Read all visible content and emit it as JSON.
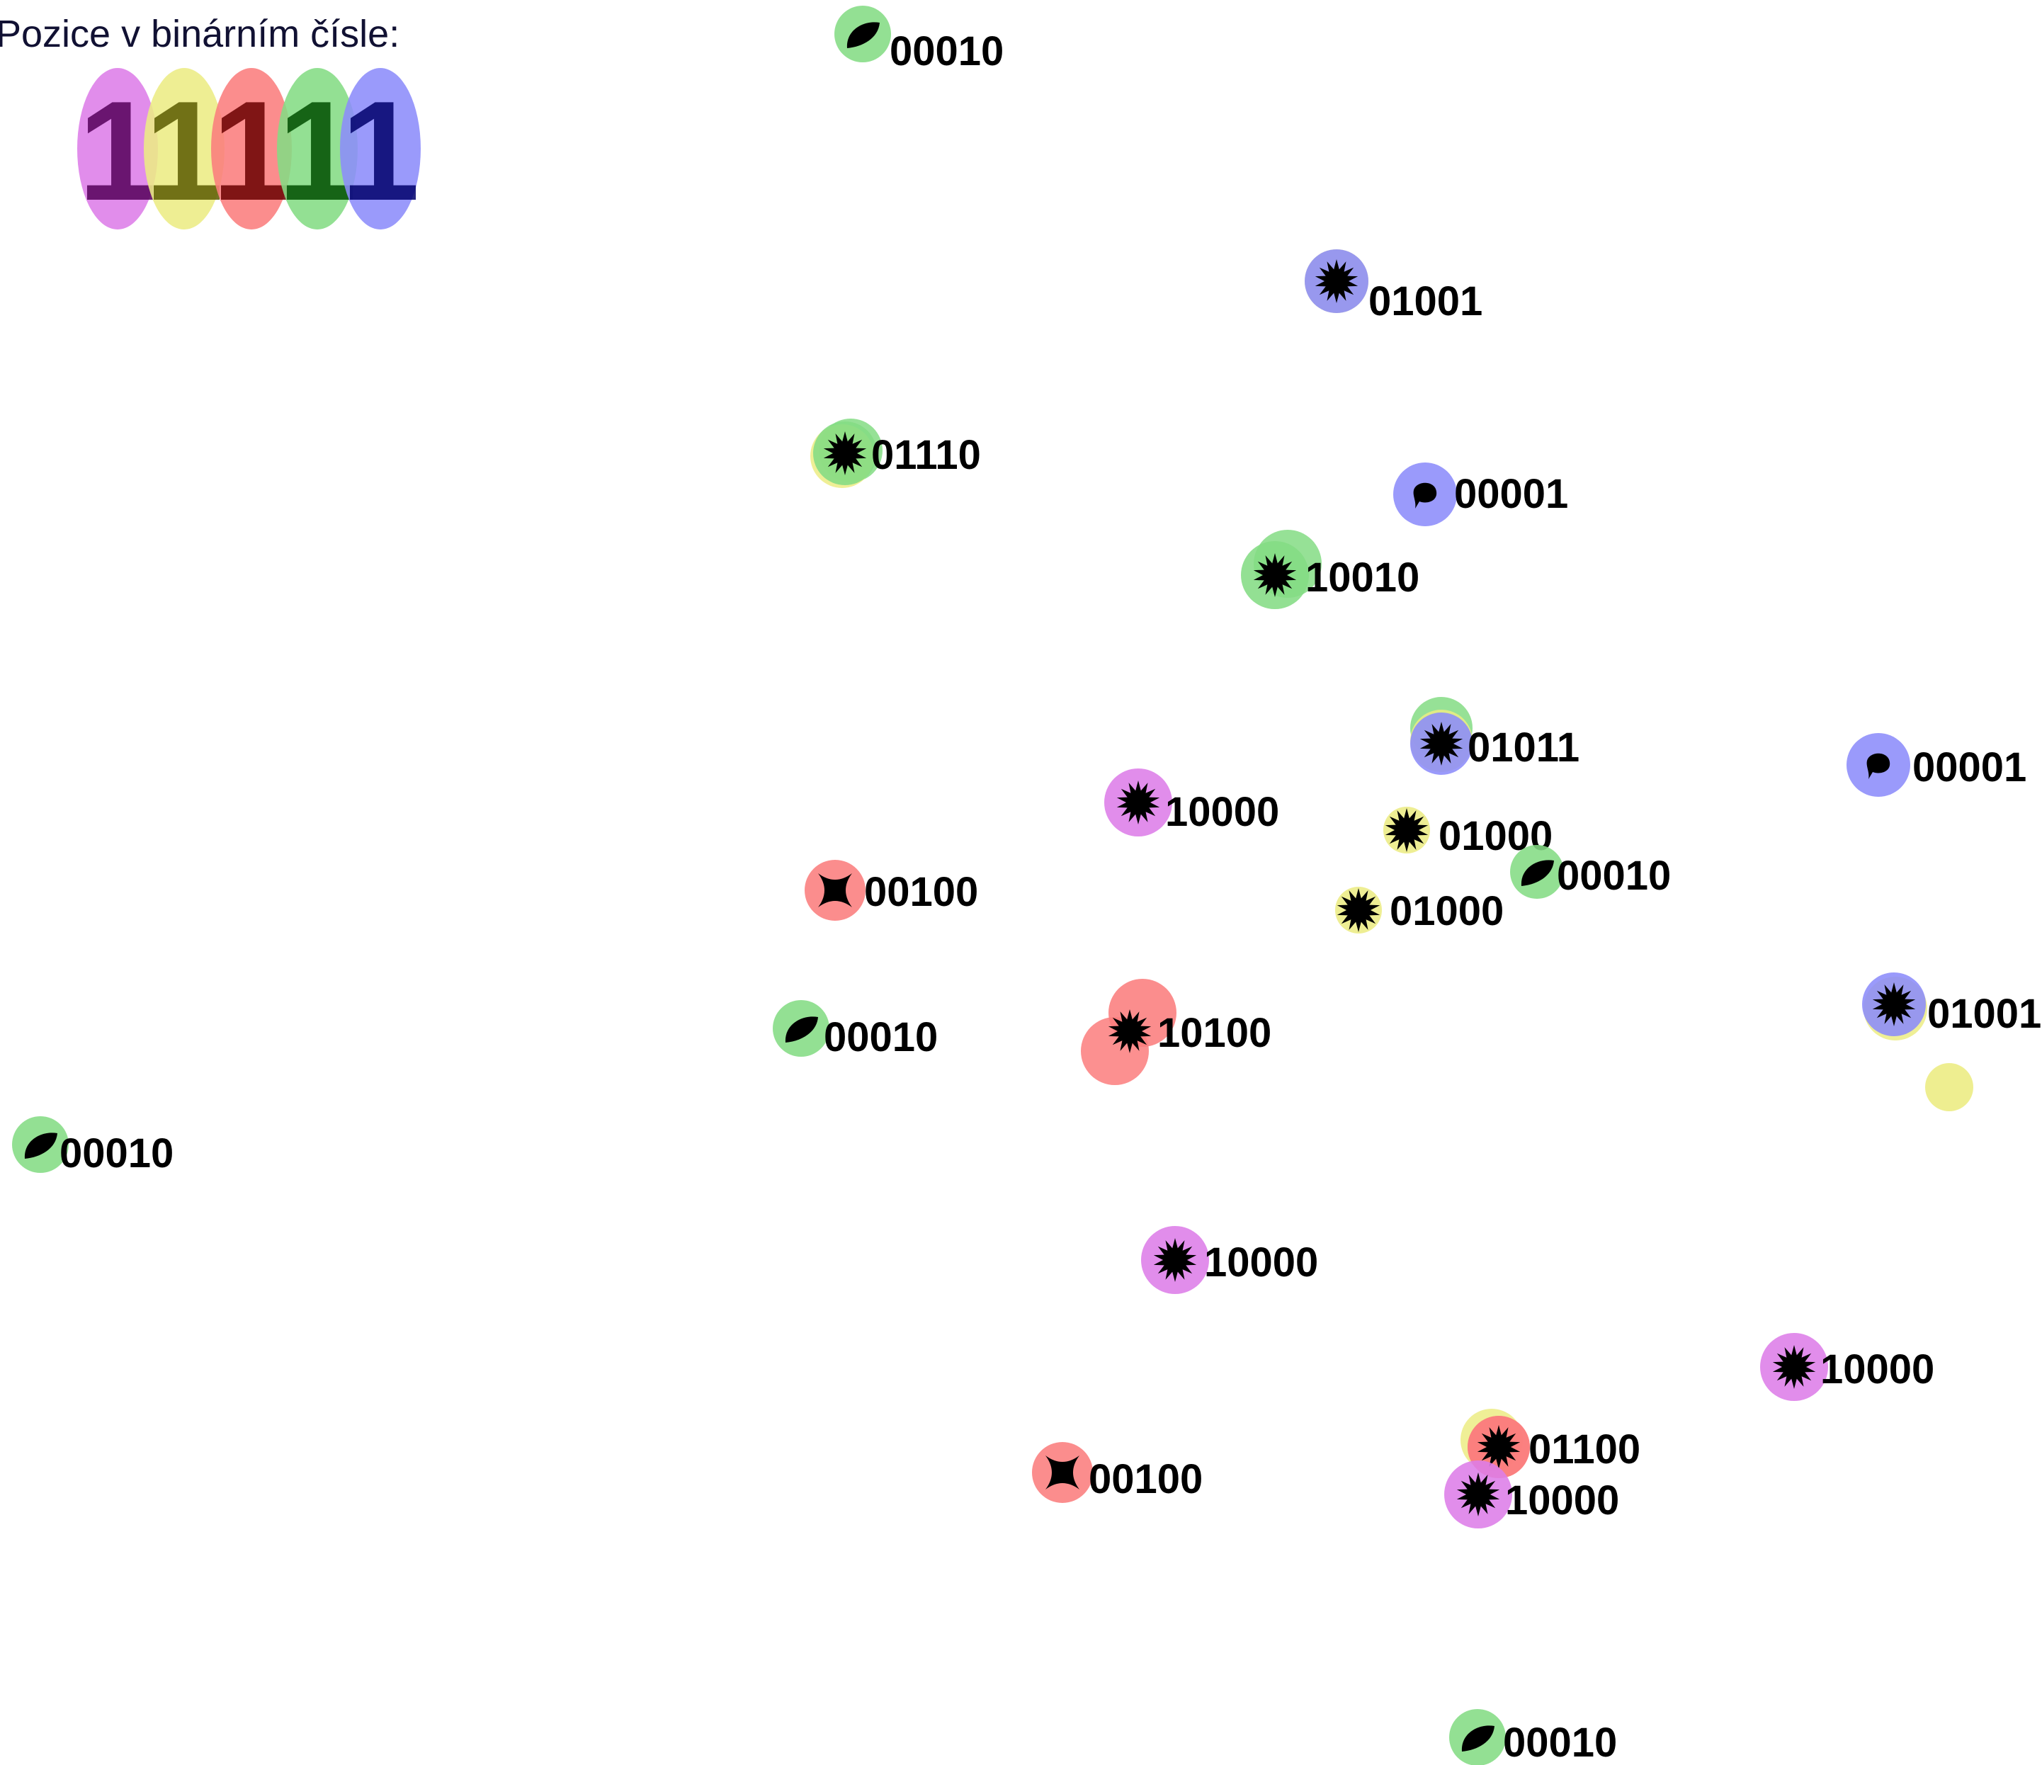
{
  "legend": {
    "title": "Pozice v binárním čísle:",
    "digits": [
      {
        "text": "1",
        "fill": "#dd7de8",
        "digit_color": "#55005a"
      },
      {
        "text": "1",
        "fill": "#ecec84",
        "digit_color": "#5a5a00"
      },
      {
        "text": "1",
        "fill": "#fb7d7d",
        "digit_color": "#6a0000"
      },
      {
        "text": "1",
        "fill": "#84dc84",
        "digit_color": "#004d00"
      },
      {
        "text": "1",
        "fill": "#8c8cfa",
        "digit_color": "#00006b"
      }
    ]
  },
  "bit_colors": [
    "#dd7de8",
    "#ecec84",
    "#fb7d7d",
    "#84dc84",
    "#8c8cfa"
  ],
  "nodes": [
    {
      "label": "00010",
      "icon": "leaf-icon"
    },
    {
      "label": "01001",
      "icon": "starburst-icon"
    },
    {
      "label": "01110",
      "icon": "starburst-icon"
    },
    {
      "label": "00001",
      "icon": "drop-icon"
    },
    {
      "label": "10010",
      "icon": "starburst-icon"
    },
    {
      "label": "01011",
      "icon": "starburst-icon"
    },
    {
      "label": "00001",
      "icon": "drop-icon"
    },
    {
      "label": "10000",
      "icon": "starburst-icon"
    },
    {
      "label": "01000",
      "icon": "starburst-icon"
    },
    {
      "label": "00010",
      "icon": "leaf-icon"
    },
    {
      "label": "00100",
      "icon": "cross-icon"
    },
    {
      "label": "01000",
      "icon": "starburst-icon"
    },
    {
      "label": "01001",
      "icon": "starburst-icon"
    },
    {
      "label": "00010",
      "icon": "leaf-icon"
    },
    {
      "label": "10100",
      "icon": "starburst-icon"
    },
    {
      "label": "00010",
      "icon": "leaf-icon"
    },
    {
      "label": "10000",
      "icon": "starburst-icon"
    },
    {
      "label": "10000",
      "icon": "starburst-icon"
    },
    {
      "label": "01100",
      "icon": "starburst-icon"
    },
    {
      "label": "00100",
      "icon": "cross-icon"
    },
    {
      "label": "10000",
      "icon": "starburst-icon"
    },
    {
      "label": "00010",
      "icon": "leaf-icon"
    },
    {
      "label": "",
      "icon": ""
    }
  ]
}
